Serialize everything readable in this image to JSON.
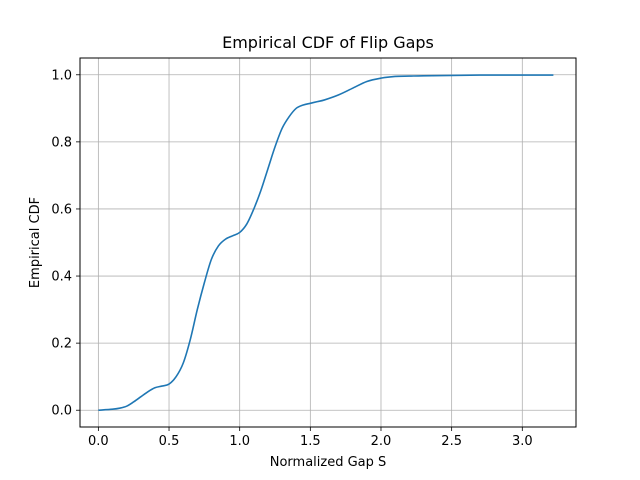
{
  "chart_data": {
    "type": "line",
    "title": "Empirical CDF of Flip Gaps",
    "xlabel": "Normalized Gap S",
    "ylabel": "Empirical CDF",
    "xlim": [
      -0.13,
      3.38
    ],
    "ylim": [
      -0.05,
      1.05
    ],
    "grid": true,
    "x_ticks": [
      0.0,
      0.5,
      1.0,
      1.5,
      2.0,
      2.5,
      3.0
    ],
    "x_tick_labels": [
      "0.0",
      "0.5",
      "1.0",
      "1.5",
      "2.0",
      "2.5",
      "3.0"
    ],
    "y_ticks": [
      0.0,
      0.2,
      0.4,
      0.6,
      0.8,
      1.0
    ],
    "y_tick_labels": [
      "0.0",
      "0.2",
      "0.4",
      "0.6",
      "0.8",
      "1.0"
    ],
    "series": [
      {
        "color": "#1f77b4",
        "x": [
          0.0,
          0.1,
          0.15,
          0.2,
          0.25,
          0.3,
          0.35,
          0.4,
          0.45,
          0.5,
          0.55,
          0.6,
          0.65,
          0.7,
          0.75,
          0.8,
          0.85,
          0.9,
          0.95,
          1.0,
          1.05,
          1.1,
          1.15,
          1.2,
          1.25,
          1.3,
          1.35,
          1.4,
          1.45,
          1.5,
          1.55,
          1.6,
          1.7,
          1.8,
          1.9,
          2.0,
          2.1,
          2.2,
          2.3,
          2.5,
          2.7,
          3.0,
          3.22
        ],
        "y": [
          0.0,
          0.003,
          0.006,
          0.012,
          0.025,
          0.04,
          0.055,
          0.067,
          0.072,
          0.078,
          0.1,
          0.14,
          0.21,
          0.3,
          0.38,
          0.45,
          0.49,
          0.51,
          0.52,
          0.53,
          0.555,
          0.6,
          0.655,
          0.72,
          0.785,
          0.84,
          0.875,
          0.9,
          0.91,
          0.915,
          0.92,
          0.925,
          0.94,
          0.96,
          0.98,
          0.99,
          0.995,
          0.996,
          0.997,
          0.998,
          0.999,
          0.999,
          0.999
        ]
      }
    ]
  }
}
